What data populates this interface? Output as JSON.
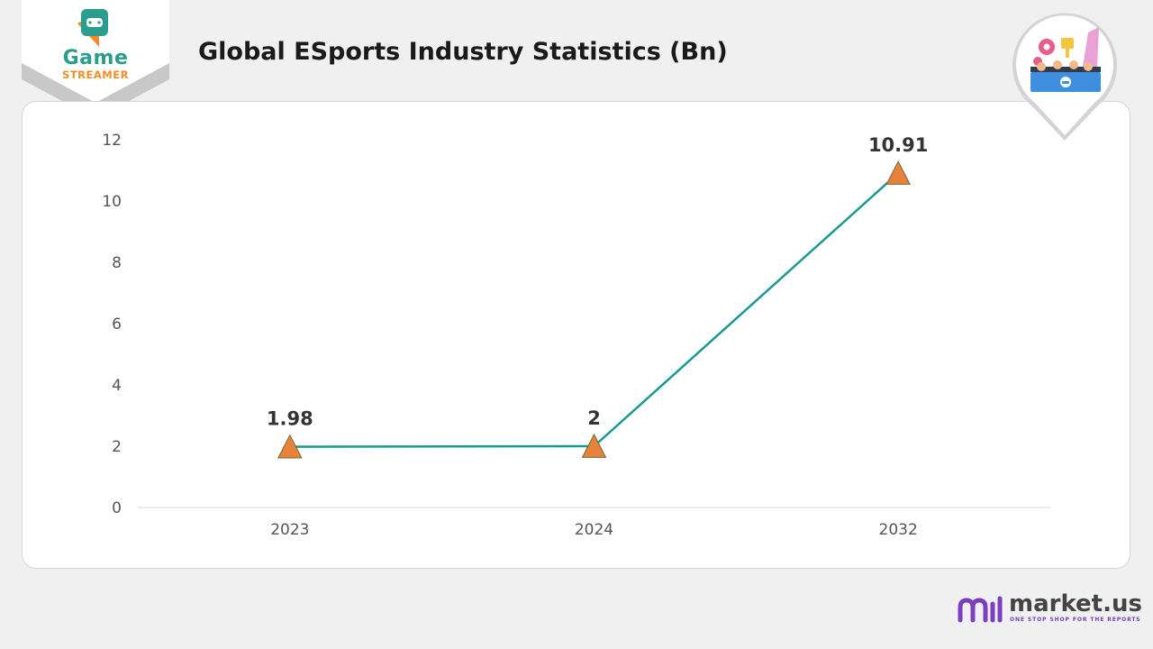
{
  "brand": {
    "line1": "Game",
    "line2": "STREAMER"
  },
  "header": {
    "title": "Global ESports Industry Statistics (Bn)"
  },
  "footer": {
    "brand": "market.us",
    "tagline": "ONE STOP SHOP FOR THE REPORTS"
  },
  "colors": {
    "line": "#1a9990",
    "marker": "#e8823a",
    "marker_edge": "#6b6b3a",
    "axis_text": "#555555",
    "data_label": "#333333"
  },
  "icons": [
    "gamepad-icon",
    "esports-team-icon",
    "market-us-logo-icon"
  ],
  "chart_data": {
    "type": "line",
    "categories": [
      "2023",
      "2024",
      "2032"
    ],
    "series": [
      {
        "values": [
          1.98,
          2,
          10.91
        ],
        "labels": [
          "1.98",
          "2",
          "10.91"
        ],
        "marker": "triangle"
      }
    ],
    "yticks": [
      "0",
      "2",
      "4",
      "6",
      "8",
      "10",
      "12"
    ],
    "ylim": [
      0,
      12
    ],
    "grid": false,
    "legend": "none"
  }
}
